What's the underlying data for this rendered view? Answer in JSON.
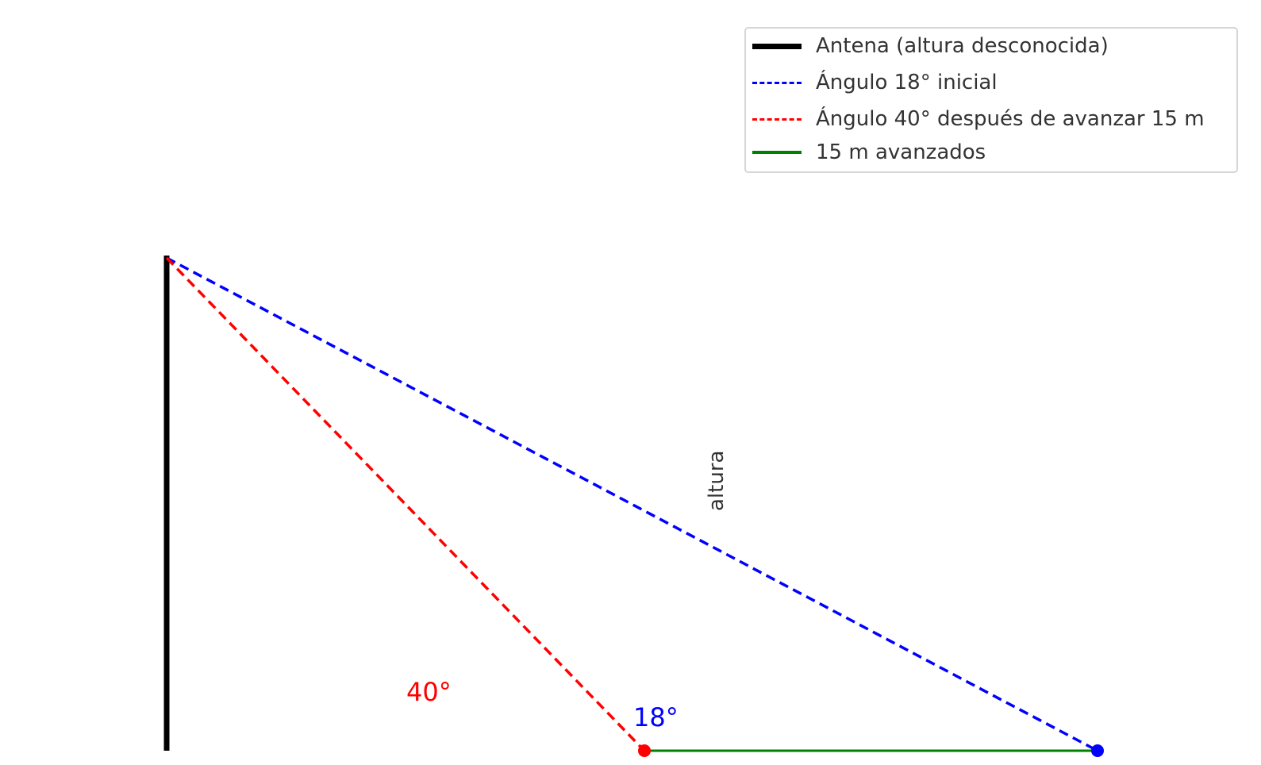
{
  "legend": {
    "items": [
      {
        "label": "Antena (altura desconocida)",
        "color": "#000000",
        "style": "solid",
        "weight": "thick"
      },
      {
        "label": "Ángulo 18° inicial",
        "color": "#0000ff",
        "style": "dashed",
        "weight": "normal"
      },
      {
        "label": "Ángulo 40° después de avanzar 15 m",
        "color": "#ff0000",
        "style": "dashed",
        "weight": "normal"
      },
      {
        "label": "15 m avanzados",
        "color": "#008000",
        "style": "solid",
        "weight": "normal"
      }
    ]
  },
  "annotations": {
    "angle_40": "40°",
    "angle_18": "18°",
    "height": "altura"
  },
  "colors": {
    "antenna": "#000000",
    "initial_sight": "#0000ff",
    "final_sight": "#ff0000",
    "distance": "#008000",
    "label_text": "#333333"
  }
}
